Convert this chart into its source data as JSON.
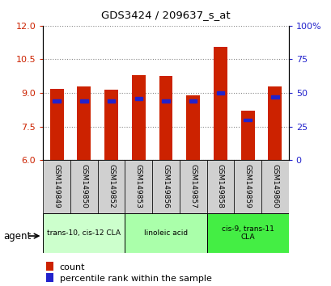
{
  "title": "GDS3424 / 209637_s_at",
  "samples": [
    "GSM149849",
    "GSM149850",
    "GSM149852",
    "GSM149853",
    "GSM149856",
    "GSM149857",
    "GSM149858",
    "GSM149859",
    "GSM149860"
  ],
  "count_values": [
    9.2,
    9.3,
    9.15,
    9.8,
    9.75,
    8.9,
    11.05,
    8.2,
    9.3
  ],
  "percentile_values": [
    44,
    44,
    44,
    46,
    44,
    44,
    50,
    30,
    47
  ],
  "ylim_left": [
    6,
    12
  ],
  "ylim_right": [
    0,
    100
  ],
  "y_left_ticks": [
    6,
    7.5,
    9,
    10.5,
    12
  ],
  "y_right_ticks": [
    0,
    25,
    50,
    75,
    100
  ],
  "bar_color": "#cc2200",
  "percentile_color": "#2222cc",
  "bar_width": 0.5,
  "groups": [
    {
      "label": "trans-10, cis-12 CLA",
      "indices": [
        0,
        1,
        2
      ],
      "color": "#ccffcc"
    },
    {
      "label": "linoleic acid",
      "indices": [
        3,
        4,
        5
      ],
      "color": "#aaffaa"
    },
    {
      "label": "cis-9, trans-11\nCLA",
      "indices": [
        6,
        7,
        8
      ],
      "color": "#44ee44"
    }
  ],
  "legend_count_color": "#cc2200",
  "legend_percentile_color": "#2222cc",
  "base_value": 6,
  "grid_color": "#888888"
}
